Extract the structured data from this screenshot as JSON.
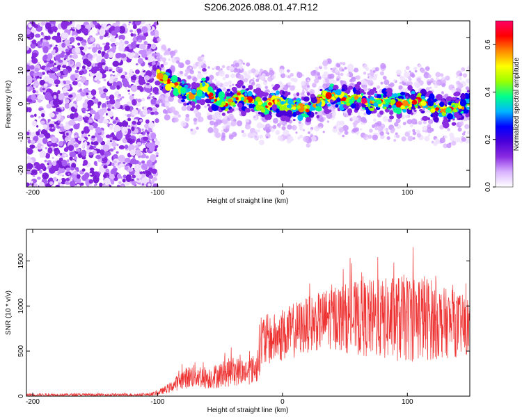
{
  "title": "S206.2026.088.01.47.R12",
  "chart_data": [
    {
      "type": "heatmap",
      "xlabel": "Height of straight line (km)",
      "ylabel": "Frequency (Hz)",
      "xlim": [
        -205,
        150
      ],
      "ylim": [
        -25,
        25
      ],
      "xticks": [
        -200,
        -100,
        0,
        100
      ],
      "yticks": [
        -20,
        -10,
        0,
        10,
        20
      ],
      "colorbar": {
        "label": "Normalized spectral amplitude",
        "range": [
          0,
          0.7
        ],
        "ticks": [
          "0.0",
          "0.2",
          "0.4",
          "0.6"
        ],
        "colors": [
          "#ffffff",
          "#d9b3ff",
          "#8a2be2",
          "#4b00d9",
          "#0000ff",
          "#00b7ff",
          "#00ff8c",
          "#9cff00",
          "#ffff00",
          "#ff8800",
          "#ff0000",
          "#ff0066"
        ]
      },
      "ridge": {
        "x": [
          -100,
          -90,
          -80,
          -70,
          -62,
          -55,
          -45,
          -35,
          -25,
          -15,
          -5,
          0,
          10,
          20,
          30,
          40,
          50,
          60,
          70,
          80,
          90,
          100,
          110,
          120,
          130,
          140,
          150
        ],
        "y": [
          9,
          6,
          4,
          2,
          6,
          1,
          0,
          2,
          1,
          -1,
          1,
          0,
          -1,
          -2,
          1,
          3,
          1,
          2,
          0,
          1,
          0,
          0,
          1,
          -1,
          -2,
          -1,
          0
        ]
      }
    },
    {
      "type": "line",
      "xlabel": "Height of straight line (km)",
      "ylabel": "SNR (10 * v/v)",
      "xlim": [
        -205,
        150
      ],
      "ylim": [
        0,
        1850
      ],
      "xticks": [
        -200,
        -100,
        0,
        100
      ],
      "yticks": [
        0,
        500,
        1000,
        1500
      ],
      "color": "#ee3333",
      "envelope": {
        "x": [
          -205,
          -110,
          -100,
          -90,
          -80,
          -70,
          -60,
          -50,
          -40,
          -30,
          -20,
          -18,
          -10,
          0,
          10,
          20,
          30,
          40,
          50,
          60,
          70,
          80,
          90,
          100,
          110,
          120,
          130,
          140,
          150
        ],
        "lo": [
          0,
          0,
          10,
          40,
          80,
          90,
          80,
          90,
          110,
          120,
          150,
          250,
          350,
          380,
          420,
          480,
          500,
          520,
          480,
          450,
          420,
          400,
          380,
          380,
          380,
          400,
          420,
          430,
          450
        ],
        "hi": [
          30,
          30,
          60,
          150,
          300,
          380,
          320,
          380,
          440,
          420,
          480,
          950,
          900,
          950,
          1050,
          1100,
          1150,
          1250,
          1250,
          1280,
          1300,
          1300,
          1350,
          1350,
          1400,
          1300,
          1200,
          1150,
          1100
        ]
      }
    }
  ]
}
